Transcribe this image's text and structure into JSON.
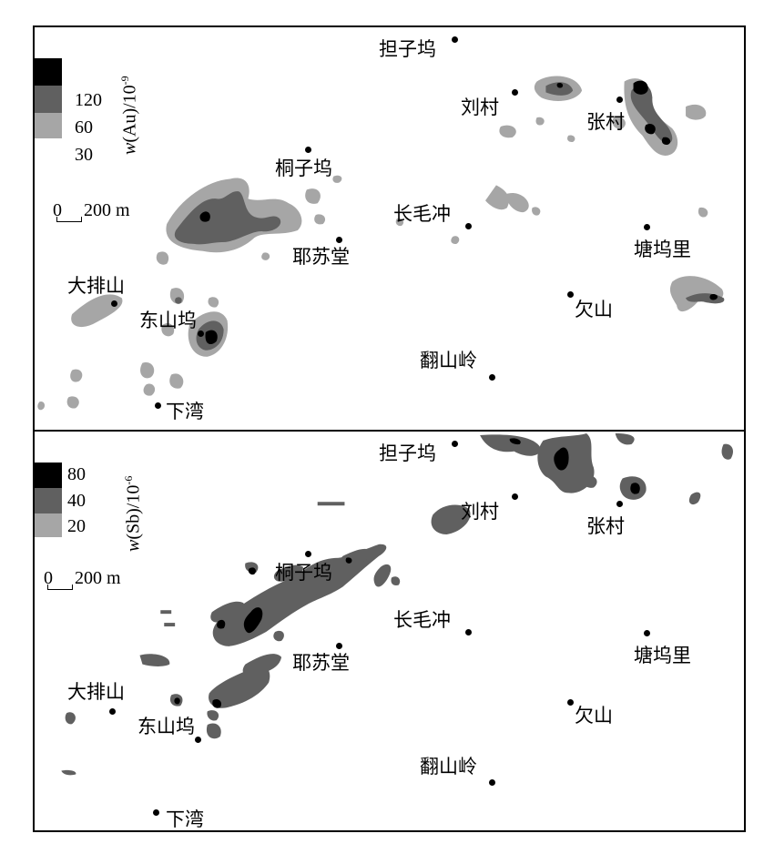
{
  "colors": {
    "low": "#a6a6a6",
    "mid": "#606060",
    "high": "#000000",
    "background": "#ffffff"
  },
  "panels": [
    {
      "id": "au",
      "axis_title_var": "w",
      "axis_title": "(Au)/10",
      "axis_title_exp": "-9",
      "legend": [
        "120",
        "60",
        "30"
      ],
      "scale": "0",
      "scale_dist": "200 m"
    },
    {
      "id": "sb",
      "axis_title_var": "w",
      "axis_title": "(Sb)/10",
      "axis_title_exp": "-6",
      "legend": [
        "80",
        "40",
        "20"
      ],
      "scale": "0",
      "scale_dist": "200 m"
    }
  ],
  "places": {
    "danziwu": "担子坞",
    "liucun": "刘村",
    "zhangcun": "张村",
    "tongziwu": "桐子坞",
    "changmaochong": "长毛冲",
    "tangwuli": "塘坞里",
    "yesutang": "耶苏堂",
    "dapaishan": "大排山",
    "dongshanwu": "东山坞",
    "qianshan": "欠山",
    "fanshanling": "翻山岭",
    "xiawan": "下湾"
  }
}
